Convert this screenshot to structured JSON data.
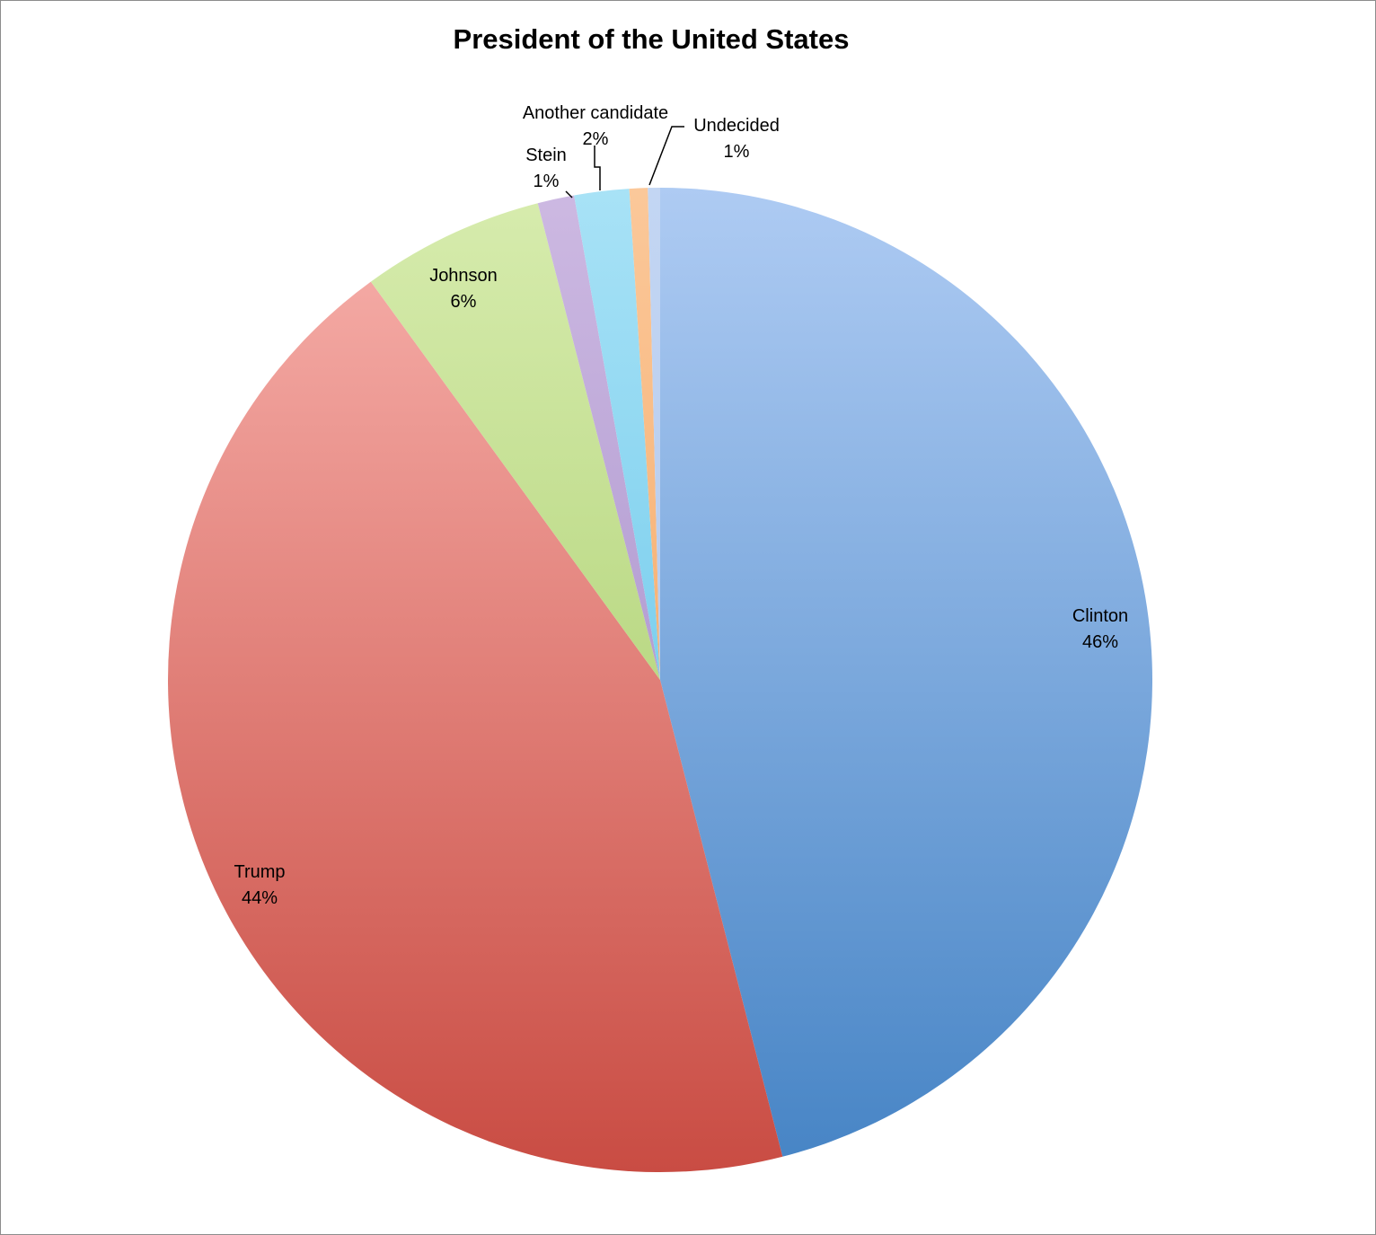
{
  "chart_data": {
    "type": "pie",
    "title": "President of the United States",
    "slices": [
      {
        "label": "Clinton",
        "pct_label": "46%",
        "value": 46.0,
        "color_top": "#aecbf3",
        "color_bottom": "#4684c5"
      },
      {
        "label": "Trump",
        "pct_label": "44%",
        "value": 44.0,
        "color_top": "#f8b2ad",
        "color_bottom": "#c94c43"
      },
      {
        "label": "Johnson",
        "pct_label": "6%",
        "value": 6.0,
        "color_top": "#d7ecae",
        "color_bottom": "#9ec65c"
      },
      {
        "label": "Stein",
        "pct_label": "1%",
        "value": 1.2,
        "color_top": "#cdb9e2",
        "color_bottom": "#9a82c2"
      },
      {
        "label": "Another candidate",
        "pct_label": "2%",
        "value": 1.8,
        "color_top": "#a8e2f6",
        "color_bottom": "#52bde6"
      },
      {
        "label": "Undecided",
        "pct_label": "1%",
        "value": 0.6,
        "color_top": "#fbc89a",
        "color_bottom": "#f29a4d"
      },
      {
        "label": "",
        "pct_label": "",
        "value": 0.4,
        "color_top": "#c3d6f3",
        "color_bottom": "#a9c1ea"
      }
    ],
    "start_angle": "12 o'clock",
    "direction": "clockwise",
    "legend": "none"
  }
}
